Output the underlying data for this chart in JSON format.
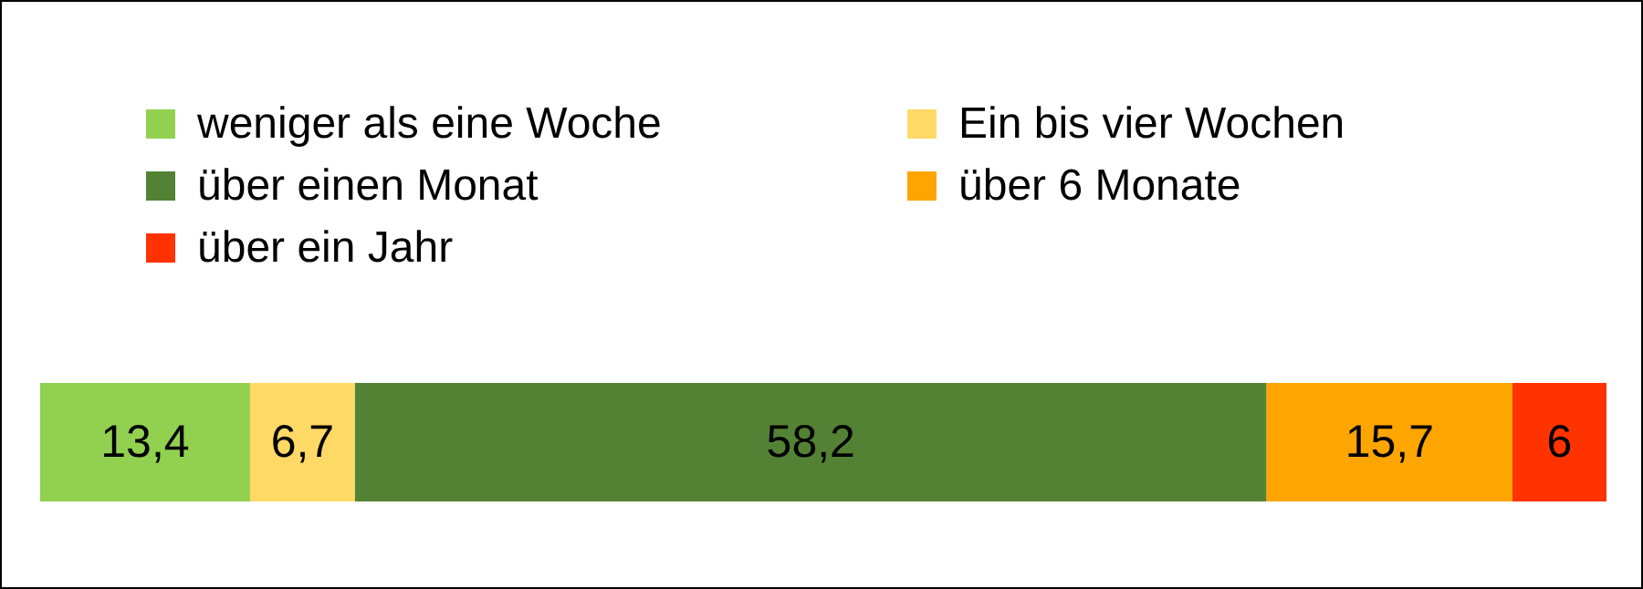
{
  "chart_data": {
    "type": "bar",
    "orientation": "horizontal",
    "stacked": true,
    "legend": "top",
    "categories": [
      null
    ],
    "series": [
      {
        "name": "weniger als eine  Woche",
        "color": "#92d050",
        "values": [
          13.4
        ],
        "value_labels": [
          "13,4"
        ]
      },
      {
        "name": "Ein bis vier Wochen",
        "color": "#ffd966",
        "values": [
          6.7
        ],
        "value_labels": [
          "6,7"
        ]
      },
      {
        "name": "über einen Monat",
        "color": "#548235",
        "values": [
          58.2
        ],
        "value_labels": [
          "58,2"
        ]
      },
      {
        "name": "über 6 Monate",
        "color": "#ffa500",
        "values": [
          15.7
        ],
        "value_labels": [
          "15,7"
        ]
      },
      {
        "name": "über ein Jahr",
        "color": "#ff3300",
        "values": [
          6
        ],
        "value_labels": [
          "6"
        ]
      }
    ]
  }
}
